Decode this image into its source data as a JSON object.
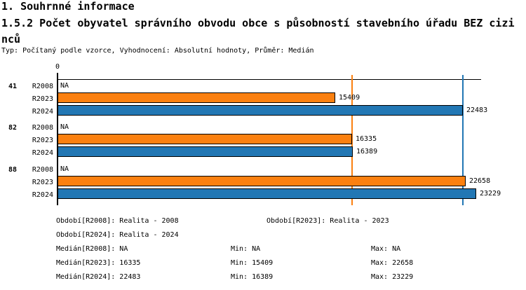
{
  "header": {
    "section_title": "1. Souhrnné informace",
    "chart_title": "1.5.2 Počet obyvatel správního obvodu obce s působností stavebního úřadu BEZ cizinců",
    "meta": "Typ: Počítaný podle vzorce, Vyhodnocení: Absolutní hodnoty, Průměr: Medián"
  },
  "chart_data": {
    "type": "bar",
    "orientation": "horizontal",
    "title": "1.5.2 Počet obyvatel správního obvodu obce s působností stavebního úřadu BEZ cizinců",
    "axis": {
      "zero_label": "0",
      "xlim": [
        0,
        23500
      ],
      "grid": false
    },
    "series_labels": [
      "R2008",
      "R2023",
      "R2024"
    ],
    "colors": {
      "R2023": "#fb8010",
      "R2024": "#2277b4",
      "na_text": "#000000"
    },
    "groups": [
      {
        "label": "41",
        "bars": [
          {
            "series": "R2008",
            "value": null,
            "display": "NA"
          },
          {
            "series": "R2023",
            "value": 15409,
            "display": "15409"
          },
          {
            "series": "R2024",
            "value": 22483,
            "display": "22483"
          }
        ]
      },
      {
        "label": "82",
        "bars": [
          {
            "series": "R2008",
            "value": null,
            "display": "NA"
          },
          {
            "series": "R2023",
            "value": 16335,
            "display": "16335"
          },
          {
            "series": "R2024",
            "value": 16389,
            "display": "16389"
          }
        ]
      },
      {
        "label": "88",
        "bars": [
          {
            "series": "R2008",
            "value": null,
            "display": "NA"
          },
          {
            "series": "R2023",
            "value": 22658,
            "display": "22658"
          },
          {
            "series": "R2024",
            "value": 23229,
            "display": "23229"
          }
        ]
      }
    ],
    "median_lines": [
      {
        "series": "R2023",
        "value": 16335,
        "color": "#fb8010"
      },
      {
        "series": "R2024",
        "value": 22483,
        "color": "#2277b4"
      }
    ]
  },
  "legend": {
    "period_rows": [
      [
        "Období[R2008]: Realita - 2008",
        "Období[R2023]: Realita - 2023"
      ],
      [
        "Období[R2024]: Realita - 2024"
      ]
    ],
    "stat_rows": [
      [
        "Medián[R2008]: NA",
        "Min: NA",
        "Max: NA"
      ],
      [
        "Medián[R2023]: 16335",
        "Min: 15409",
        "Max: 22658"
      ],
      [
        "Medián[R2024]: 22483",
        "Min: 16389",
        "Max: 23229"
      ]
    ]
  }
}
